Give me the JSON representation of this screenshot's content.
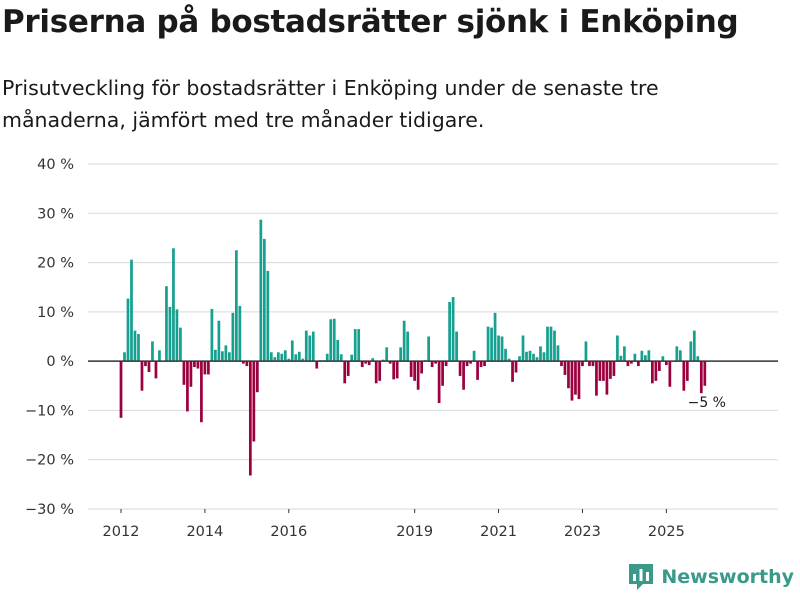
{
  "header": {
    "title": "Priserna på bostadsrätter sjönk i Enköping",
    "subtitle": "Prisutveckling för bostadsrätter i Enköping under de senaste tre månaderna, jämfört med tre månader tidigare."
  },
  "brand": {
    "name": "Newsworthy",
    "icon": "newsworthy-logo-icon",
    "color": "#3a9a8a"
  },
  "colors": {
    "positive": "#16a090",
    "negative": "#9b003f",
    "zero_line": "#333333",
    "grid": "#d9d9d9"
  },
  "chart_data": {
    "type": "bar",
    "title": "Priserna på bostadsrätter sjönk i Enköping",
    "xlabel": "",
    "ylabel": "",
    "ylim": [
      -30,
      40
    ],
    "yticks": [
      -30,
      -20,
      -10,
      0,
      10,
      20,
      30,
      40
    ],
    "ytick_labels": [
      "−30 %",
      "−20 %",
      "−10 %",
      "0 %",
      "10 %",
      "20 %",
      "30 %",
      "40 %"
    ],
    "xticks": [
      2012,
      2014,
      2016,
      2019,
      2021,
      2023,
      2025
    ],
    "xtick_labels": [
      "2012",
      "2014",
      "2016",
      "2019",
      "2021",
      "2023",
      "2025"
    ],
    "period": {
      "start": [
        2012,
        1
      ],
      "end": [
        2025,
        10
      ]
    },
    "unit": "percent",
    "grid": true,
    "annotation": {
      "text": "−5 %",
      "value": -5
    },
    "values": [
      -11.5,
      1.8,
      12.7,
      20.6,
      6.2,
      5.5,
      -6,
      -1,
      -2.2,
      4,
      -3.5,
      2.2,
      0,
      15.2,
      11,
      22.9,
      10.5,
      6.8,
      -4.8,
      -10.2,
      -5.2,
      -1.2,
      -1.5,
      -12.4,
      -2.7,
      -2.7,
      10.6,
      2.3,
      8.2,
      2,
      3.2,
      1.8,
      9.8,
      22.5,
      11.2,
      -0.5,
      -1,
      -23.2,
      -16.3,
      -6.3,
      28.7,
      24.8,
      18.3,
      1.8,
      0.8,
      1.8,
      1.5,
      2.2,
      0.5,
      4.2,
      1.4,
      1.9,
      0.5,
      6.2,
      5.2,
      6,
      -1.5,
      0.2,
      0.2,
      1.5,
      8.5,
      8.6,
      4.3,
      1.4,
      -4.5,
      -3,
      1.3,
      6.5,
      6.5,
      -1.2,
      -0.5,
      -0.8,
      0.6,
      -4.5,
      -4,
      0.3,
      2.8,
      -0.5,
      -3.7,
      -3.5,
      2.8,
      8.2,
      6,
      -3.2,
      -4,
      -5.8,
      -2.5,
      0.2,
      5,
      -1.2,
      -0.5,
      -8.5,
      -5,
      -1,
      12,
      13,
      6,
      -3,
      -5.8,
      -1,
      -0.5,
      2.1,
      -3.8,
      -1.2,
      -1,
      7,
      6.8,
      9.8,
      5.2,
      5,
      2.5,
      0.5,
      -4.2,
      -2.3,
      1,
      5.2,
      1.9,
      2.1,
      1.5,
      0.8,
      3,
      1.8,
      7,
      7,
      6.2,
      3.2,
      -1,
      -2.8,
      -5.5,
      -8,
      -6.8,
      -7.7,
      -1,
      4,
      -1,
      -1,
      -7,
      -4,
      -4,
      -6.8,
      -3.6,
      -3,
      5.2,
      1.1,
      3,
      -1,
      -0.5,
      1.5,
      -1,
      2.1,
      1.2,
      2.2,
      -4.5,
      -4,
      -2,
      1,
      -0.8,
      -5.2,
      0,
      3,
      2.2,
      -6,
      -4,
      4,
      6.2,
      1,
      -6.5,
      -5
    ]
  }
}
